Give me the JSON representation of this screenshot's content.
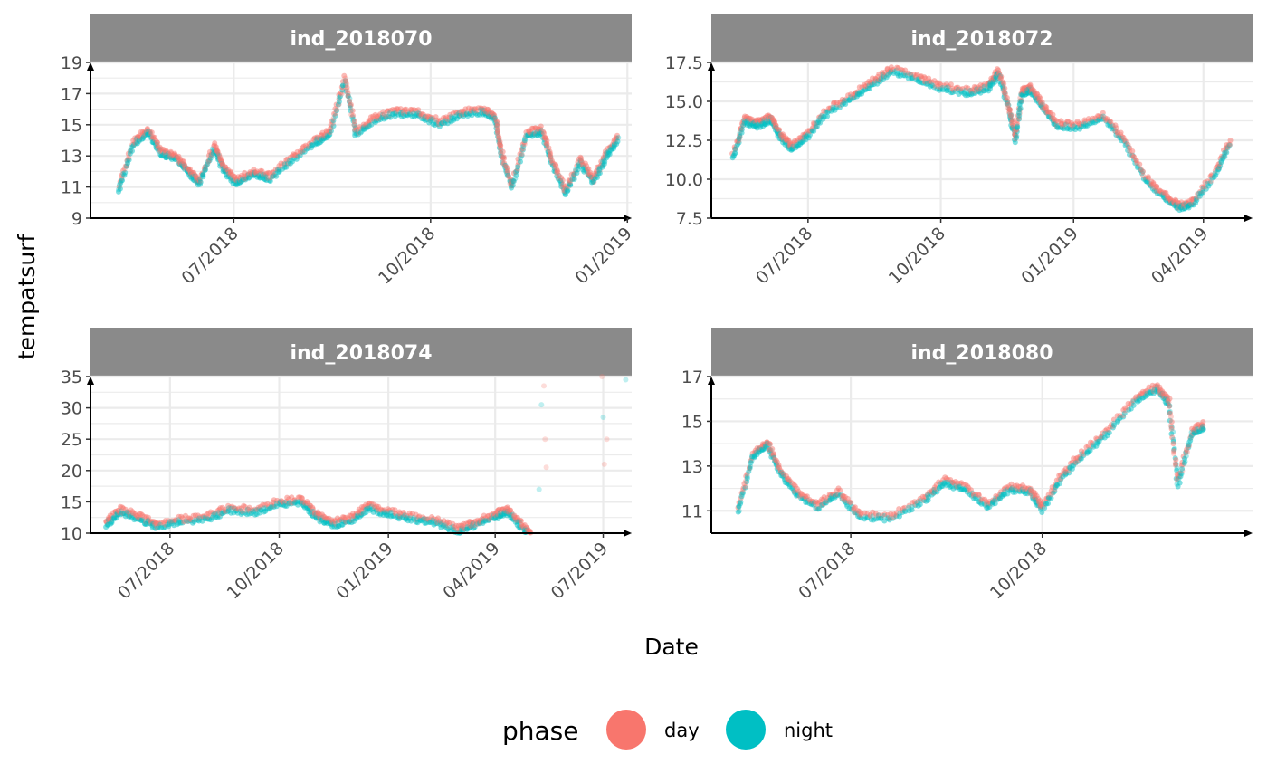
{
  "chart_data": {
    "type": "scatter",
    "facet_variable": "ind",
    "ylabel": "tempatsurf",
    "xlabel": "Date",
    "legend": {
      "title": "phase",
      "position": "bottom",
      "entries": [
        {
          "name": "day",
          "color": "#F8766D"
        },
        {
          "name": "night",
          "color": "#00BFC4"
        }
      ]
    },
    "colors": {
      "day": "#F8766D",
      "night": "#00BFC4",
      "strip": "#8a8a8a",
      "grid": "#ebebeb"
    },
    "panels": [
      {
        "title": "ind_2018070",
        "xlim": [
          "2018-04-25",
          "2019-01-03"
        ],
        "ylim": [
          9,
          19
        ],
        "y_ticks": [
          9,
          11,
          13,
          15,
          17,
          19
        ],
        "x_ticks": [
          {
            "date": "2018-07-01",
            "label": "07/2018"
          },
          {
            "date": "2018-10-01",
            "label": "10/2018"
          },
          {
            "date": "2019-01-01",
            "label": "01/2019"
          }
        ],
        "series": [
          {
            "date": "2018-05-08",
            "y": 10.8
          },
          {
            "date": "2018-05-15",
            "y": 13.8
          },
          {
            "date": "2018-05-22",
            "y": 14.6
          },
          {
            "date": "2018-05-28",
            "y": 13.2
          },
          {
            "date": "2018-06-04",
            "y": 12.9
          },
          {
            "date": "2018-06-10",
            "y": 12.0
          },
          {
            "date": "2018-06-15",
            "y": 11.3
          },
          {
            "date": "2018-06-22",
            "y": 13.6
          },
          {
            "date": "2018-06-26",
            "y": 12.2
          },
          {
            "date": "2018-07-02",
            "y": 11.3
          },
          {
            "date": "2018-07-10",
            "y": 11.9
          },
          {
            "date": "2018-07-18",
            "y": 11.6
          },
          {
            "date": "2018-07-28",
            "y": 12.8
          },
          {
            "date": "2018-08-08",
            "y": 13.9
          },
          {
            "date": "2018-08-15",
            "y": 14.5
          },
          {
            "date": "2018-08-22",
            "y": 17.9
          },
          {
            "date": "2018-08-27",
            "y": 14.4
          },
          {
            "date": "2018-09-05",
            "y": 15.4
          },
          {
            "date": "2018-09-15",
            "y": 15.8
          },
          {
            "date": "2018-09-25",
            "y": 15.7
          },
          {
            "date": "2018-10-05",
            "y": 15.1
          },
          {
            "date": "2018-10-15",
            "y": 15.7
          },
          {
            "date": "2018-10-25",
            "y": 15.9
          },
          {
            "date": "2018-10-31",
            "y": 15.5
          },
          {
            "date": "2018-11-03",
            "y": 13.2
          },
          {
            "date": "2018-11-08",
            "y": 11.0
          },
          {
            "date": "2018-11-15",
            "y": 14.4
          },
          {
            "date": "2018-11-22",
            "y": 14.6
          },
          {
            "date": "2018-11-27",
            "y": 12.6
          },
          {
            "date": "2018-12-03",
            "y": 10.6
          },
          {
            "date": "2018-12-10",
            "y": 12.7
          },
          {
            "date": "2018-12-16",
            "y": 11.4
          },
          {
            "date": "2018-12-22",
            "y": 13.0
          },
          {
            "date": "2018-12-28",
            "y": 14.2
          }
        ]
      },
      {
        "title": "ind_2018072",
        "xlim": [
          "2018-04-25",
          "2019-05-05"
        ],
        "ylim": [
          7.5,
          17.5
        ],
        "y_ticks": [
          7.5,
          10.0,
          12.5,
          15.0,
          17.5
        ],
        "y_tick_labels": [
          "7.5",
          "10.0",
          "12.5",
          "15.0",
          "17.5"
        ],
        "x_ticks": [
          {
            "date": "2018-07-01",
            "label": "07/2018"
          },
          {
            "date": "2018-10-01",
            "label": "10/2018"
          },
          {
            "date": "2019-01-01",
            "label": "01/2019"
          },
          {
            "date": "2019-04-01",
            "label": "04/2019"
          }
        ],
        "series": [
          {
            "date": "2018-05-10",
            "y": 11.5
          },
          {
            "date": "2018-05-18",
            "y": 13.8
          },
          {
            "date": "2018-05-27",
            "y": 13.5
          },
          {
            "date": "2018-06-05",
            "y": 13.9
          },
          {
            "date": "2018-06-12",
            "y": 12.8
          },
          {
            "date": "2018-06-20",
            "y": 12.0
          },
          {
            "date": "2018-07-01",
            "y": 12.9
          },
          {
            "date": "2018-07-15",
            "y": 14.4
          },
          {
            "date": "2018-08-01",
            "y": 15.3
          },
          {
            "date": "2018-08-15",
            "y": 16.2
          },
          {
            "date": "2018-08-28",
            "y": 17.0
          },
          {
            "date": "2018-09-15",
            "y": 16.5
          },
          {
            "date": "2018-10-01",
            "y": 15.9
          },
          {
            "date": "2018-10-20",
            "y": 15.6
          },
          {
            "date": "2018-11-03",
            "y": 15.9
          },
          {
            "date": "2018-11-10",
            "y": 16.9
          },
          {
            "date": "2018-11-17",
            "y": 14.6
          },
          {
            "date": "2018-11-22",
            "y": 12.6
          },
          {
            "date": "2018-11-26",
            "y": 15.5
          },
          {
            "date": "2018-12-02",
            "y": 15.8
          },
          {
            "date": "2018-12-10",
            "y": 14.8
          },
          {
            "date": "2018-12-20",
            "y": 13.5
          },
          {
            "date": "2019-01-05",
            "y": 13.4
          },
          {
            "date": "2019-01-22",
            "y": 14.0
          },
          {
            "date": "2019-02-05",
            "y": 12.5
          },
          {
            "date": "2019-02-20",
            "y": 10.0
          },
          {
            "date": "2019-03-05",
            "y": 8.9
          },
          {
            "date": "2019-03-15",
            "y": 8.2
          },
          {
            "date": "2019-03-25",
            "y": 8.5
          },
          {
            "date": "2019-04-10",
            "y": 10.5
          },
          {
            "date": "2019-04-20",
            "y": 12.5
          }
        ]
      },
      {
        "title": "ind_2018074",
        "xlim": [
          "2018-04-25",
          "2019-07-25"
        ],
        "ylim": [
          10,
          35
        ],
        "y_ticks": [
          10,
          15,
          20,
          25,
          30,
          35
        ],
        "x_ticks": [
          {
            "date": "2018-07-01",
            "label": "07/2018"
          },
          {
            "date": "2018-10-01",
            "label": "10/2018"
          },
          {
            "date": "2019-01-01",
            "label": "01/2019"
          },
          {
            "date": "2019-04-01",
            "label": "04/2019"
          },
          {
            "date": "2019-07-01",
            "label": "07/2019"
          }
        ],
        "series": [
          {
            "date": "2018-05-08",
            "y": 11.5
          },
          {
            "date": "2018-05-20",
            "y": 13.5
          },
          {
            "date": "2018-06-05",
            "y": 12.5
          },
          {
            "date": "2018-06-20",
            "y": 11.2
          },
          {
            "date": "2018-07-10",
            "y": 12.0
          },
          {
            "date": "2018-08-01",
            "y": 12.5
          },
          {
            "date": "2018-08-20",
            "y": 13.8
          },
          {
            "date": "2018-09-10",
            "y": 13.5
          },
          {
            "date": "2018-10-01",
            "y": 14.8
          },
          {
            "date": "2018-10-20",
            "y": 15.2
          },
          {
            "date": "2018-11-01",
            "y": 12.8
          },
          {
            "date": "2018-11-15",
            "y": 11.5
          },
          {
            "date": "2018-12-01",
            "y": 12.2
          },
          {
            "date": "2018-12-15",
            "y": 14.2
          },
          {
            "date": "2019-01-01",
            "y": 13.2
          },
          {
            "date": "2019-01-20",
            "y": 12.5
          },
          {
            "date": "2019-02-10",
            "y": 11.8
          },
          {
            "date": "2019-03-01",
            "y": 10.5
          },
          {
            "date": "2019-03-15",
            "y": 11.5
          },
          {
            "date": "2019-04-01",
            "y": 12.8
          },
          {
            "date": "2019-04-12",
            "y": 13.5
          },
          {
            "date": "2019-04-25",
            "y": 10.8
          },
          {
            "date": "2019-05-05",
            "y": 9.0
          }
        ],
        "outliers": [
          {
            "date": "2019-05-10",
            "y": 30.5
          },
          {
            "date": "2019-05-12",
            "y": 33.5
          },
          {
            "date": "2019-05-13",
            "y": 25.0
          },
          {
            "date": "2019-05-08",
            "y": 17.0
          },
          {
            "date": "2019-05-14",
            "y": 20.5
          },
          {
            "date": "2019-06-30",
            "y": 35.0
          },
          {
            "date": "2019-07-01",
            "y": 28.5
          },
          {
            "date": "2019-07-02",
            "y": 21.0
          },
          {
            "date": "2019-07-04",
            "y": 25.0
          },
          {
            "date": "2019-07-20",
            "y": 34.5
          }
        ]
      },
      {
        "title": "ind_2018080",
        "xlim": [
          "2018-04-25",
          "2019-01-10"
        ],
        "ylim": [
          10,
          17
        ],
        "y_ticks": [
          11,
          13,
          15,
          17
        ],
        "x_ticks": [
          {
            "date": "2018-07-01",
            "label": "07/2018"
          },
          {
            "date": "2018-10-01",
            "label": "10/2018"
          }
        ],
        "series": [
          {
            "date": "2018-05-08",
            "y": 11.0
          },
          {
            "date": "2018-05-15",
            "y": 13.5
          },
          {
            "date": "2018-05-22",
            "y": 14.0
          },
          {
            "date": "2018-05-28",
            "y": 12.8
          },
          {
            "date": "2018-06-05",
            "y": 11.8
          },
          {
            "date": "2018-06-15",
            "y": 11.2
          },
          {
            "date": "2018-06-25",
            "y": 11.8
          },
          {
            "date": "2018-07-05",
            "y": 10.8
          },
          {
            "date": "2018-07-20",
            "y": 10.7
          },
          {
            "date": "2018-08-05",
            "y": 11.5
          },
          {
            "date": "2018-08-15",
            "y": 12.3
          },
          {
            "date": "2018-08-25",
            "y": 12.0
          },
          {
            "date": "2018-09-05",
            "y": 11.2
          },
          {
            "date": "2018-09-15",
            "y": 12.0
          },
          {
            "date": "2018-09-25",
            "y": 11.9
          },
          {
            "date": "2018-10-01",
            "y": 11.1
          },
          {
            "date": "2018-10-10",
            "y": 12.5
          },
          {
            "date": "2018-10-20",
            "y": 13.5
          },
          {
            "date": "2018-11-01",
            "y": 14.5
          },
          {
            "date": "2018-11-15",
            "y": 16.0
          },
          {
            "date": "2018-11-25",
            "y": 16.5
          },
          {
            "date": "2018-12-01",
            "y": 15.8
          },
          {
            "date": "2018-12-05",
            "y": 12.2
          },
          {
            "date": "2018-12-12",
            "y": 14.5
          },
          {
            "date": "2018-12-18",
            "y": 14.8
          }
        ]
      }
    ]
  }
}
